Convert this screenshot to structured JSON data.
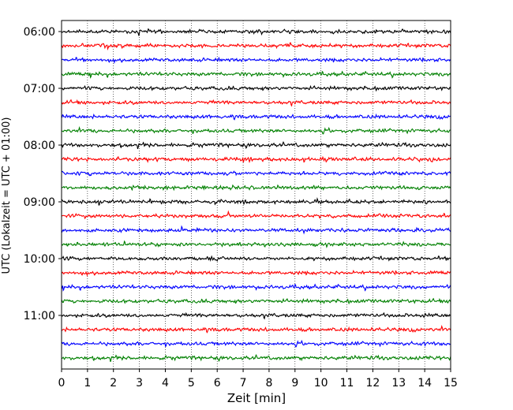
{
  "chart_data": {
    "type": "line",
    "subtype": "helicorder",
    "xlabel": "Zeit  [min]",
    "ylabel": "UTC (Lokalzeit = UTC + 01:00)",
    "x_range": [
      0,
      15
    ],
    "x_ticks": [
      0,
      1,
      2,
      3,
      4,
      5,
      6,
      7,
      8,
      9,
      10,
      11,
      12,
      13,
      14,
      15
    ],
    "y_tick_labels": [
      "06:00",
      "07:00",
      "08:00",
      "09:00",
      "10:00",
      "11:00"
    ],
    "trace_minutes": 15,
    "trace_count": 24,
    "trace_colors": [
      "#000000",
      "#ff0000",
      "#0000ff",
      "#008000"
    ],
    "vertical_grid": "dotted",
    "trace_start_times": [
      "06:00",
      "06:15",
      "06:30",
      "06:45",
      "07:00",
      "07:15",
      "07:30",
      "07:45",
      "08:00",
      "08:15",
      "08:30",
      "08:45",
      "09:00",
      "09:15",
      "09:30",
      "09:45",
      "10:00",
      "10:15",
      "10:30",
      "10:45",
      "11:00",
      "11:15",
      "11:30",
      "11:45"
    ]
  }
}
